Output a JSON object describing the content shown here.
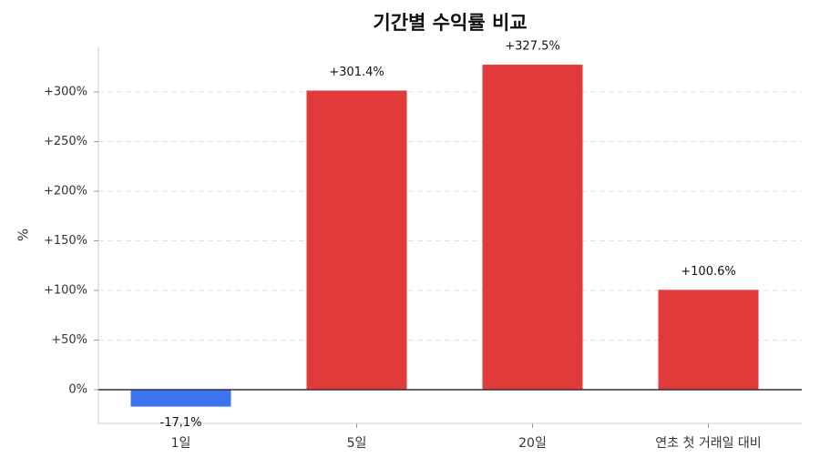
{
  "chart_data": {
    "type": "bar",
    "title": "기간별 수익률 비교",
    "y_label": "%",
    "categories": [
      "1일",
      "5일",
      "20일",
      "연초 첫 거래일 대비"
    ],
    "values": [
      -17.1,
      301.4,
      327.5,
      100.6
    ],
    "value_labels": [
      "-17.1%",
      "+301.4%",
      "+327.5%",
      "+100.6%"
    ],
    "colors": [
      "#3b74ee",
      "#e03a3a",
      "#e03a3a",
      "#e03a3a"
    ],
    "ylim": [
      -34,
      345
    ],
    "yticks": [
      {
        "value": 0,
        "label": "0%"
      },
      {
        "value": 50,
        "label": "+50%"
      },
      {
        "value": 100,
        "label": "+100%"
      },
      {
        "value": 150,
        "label": "+150%"
      },
      {
        "value": 200,
        "label": "+200%"
      },
      {
        "value": 250,
        "label": "+250%"
      },
      {
        "value": 300,
        "label": "+300%"
      }
    ],
    "grid": true
  }
}
